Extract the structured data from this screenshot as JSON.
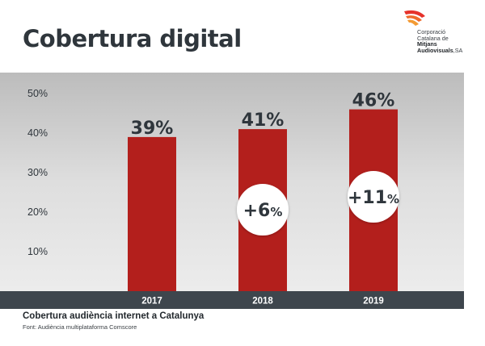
{
  "header": {
    "title": "Cobertura digital"
  },
  "logo": {
    "line1": "Corporació",
    "line2": "Catalana de",
    "line3": "Mitjans",
    "line4": "Audiovisuals",
    "line4_suffix": ",SA"
  },
  "colors": {
    "bar": "#b31f1c",
    "axis_band": "#3e464d",
    "text_dark": "#2f363c"
  },
  "chart_data": {
    "type": "bar",
    "categories": [
      "2017",
      "2018",
      "2019"
    ],
    "values": [
      39,
      41,
      46
    ],
    "data_labels": [
      "39%",
      "41%",
      "46%"
    ],
    "growth_badges": [
      {
        "category": "2018",
        "number": "+6",
        "unit": "%"
      },
      {
        "category": "2019",
        "number": "+11",
        "unit": "%"
      }
    ],
    "yticks": [
      "10%",
      "20%",
      "30%",
      "40%",
      "50%"
    ],
    "ytick_values": [
      10,
      20,
      30,
      40,
      50
    ],
    "ylim": [
      0,
      50
    ],
    "grid": false,
    "caption": "Cobertura audiència internet a Catalunya",
    "source": "Font: Audiència multiplataforma Comscore"
  }
}
